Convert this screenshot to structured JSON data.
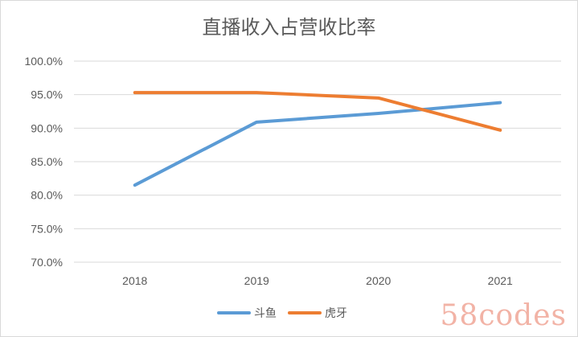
{
  "chart_data": {
    "type": "line",
    "title": "直播收入占营收比率",
    "categories": [
      "2018",
      "2019",
      "2020",
      "2021"
    ],
    "ylim": [
      70,
      100
    ],
    "yticks": [
      "100.0%",
      "95.0%",
      "90.0%",
      "85.0%",
      "80.0%",
      "75.0%",
      "70.0%"
    ],
    "ytick_values": [
      100,
      95,
      90,
      85,
      80,
      75,
      70
    ],
    "grid": true,
    "legend_position": "bottom",
    "series": [
      {
        "name": "斗鱼",
        "color": "#5b9bd5",
        "values": [
          81.5,
          90.9,
          92.2,
          93.8
        ]
      },
      {
        "name": "虎牙",
        "color": "#ed7d31",
        "values": [
          95.3,
          95.3,
          94.5,
          89.7
        ]
      }
    ]
  },
  "watermark": "58codes"
}
